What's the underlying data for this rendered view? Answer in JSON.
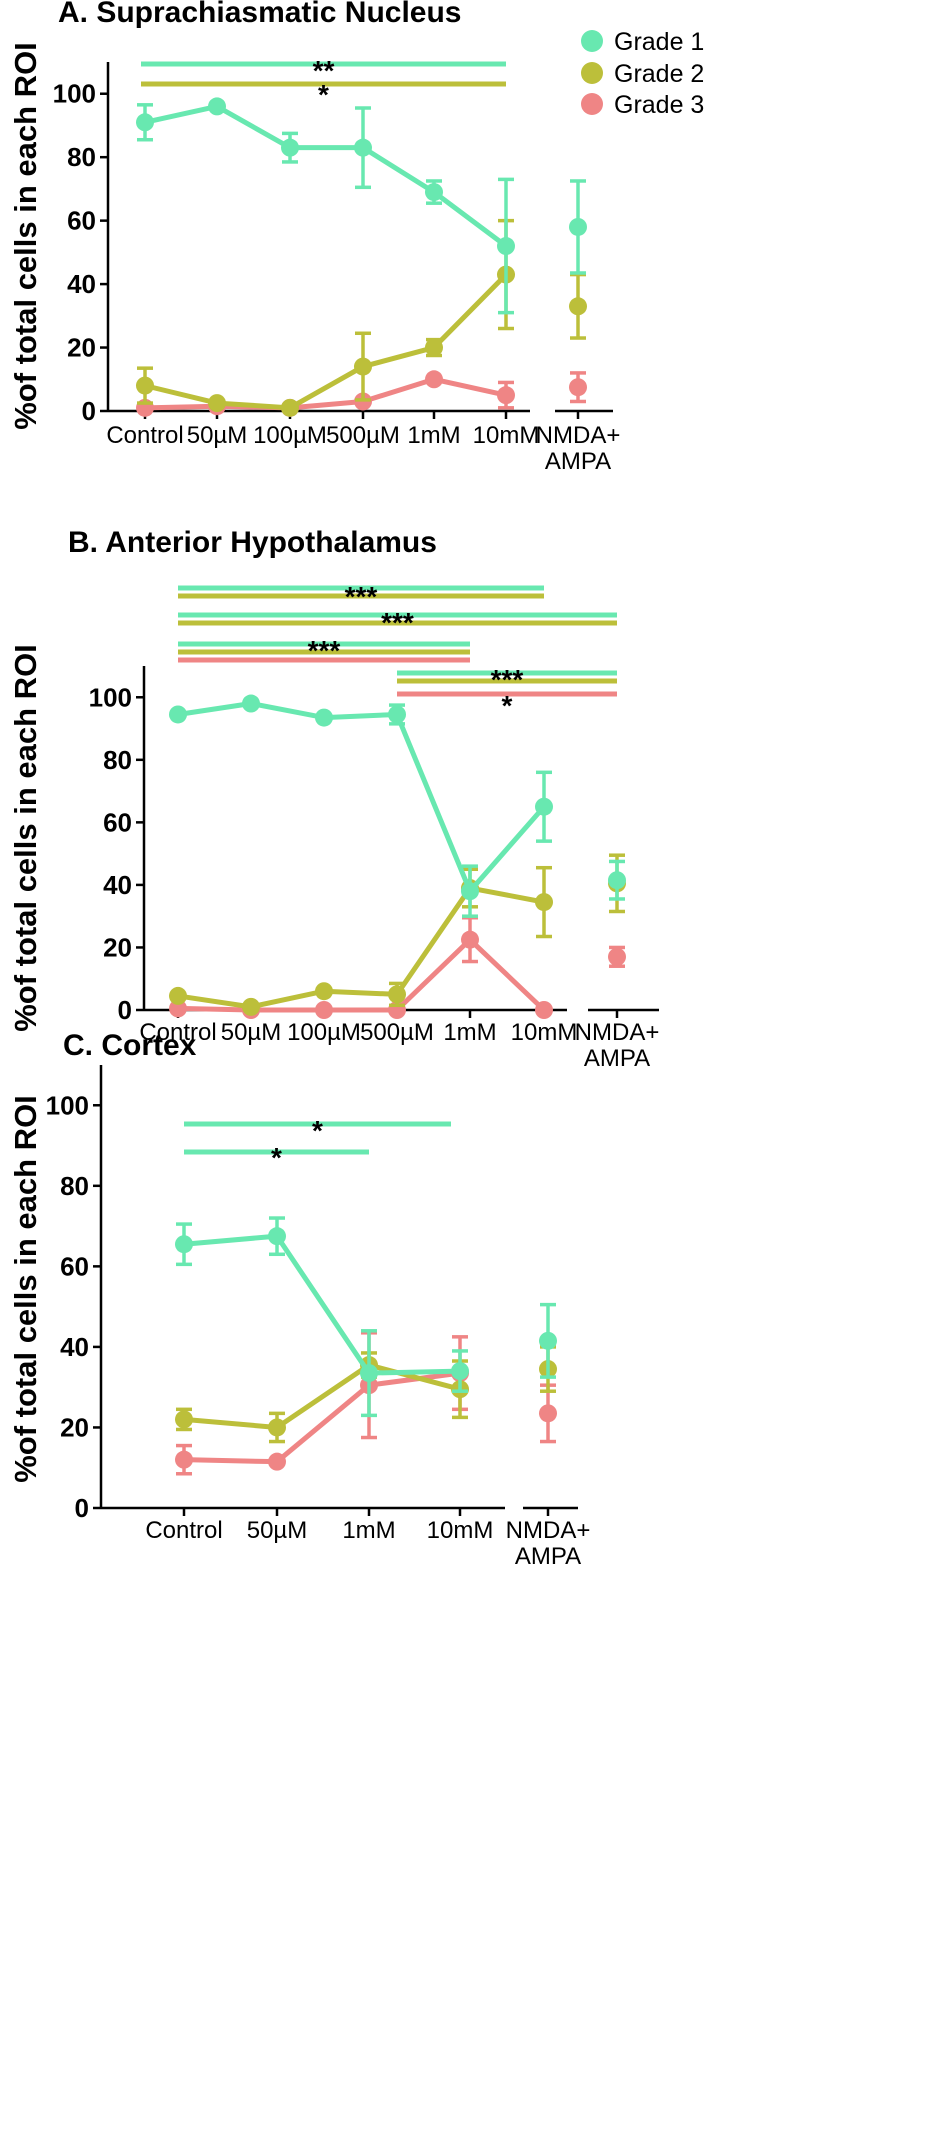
{
  "colors": {
    "Grade 1": "#68e8b0",
    "Grade 2": "#bcbf3a",
    "Grade 3": "#ef8585",
    "axis": "#000000"
  },
  "legend": [
    {
      "label": "Grade 1",
      "color_key": "Grade 1"
    },
    {
      "label": "Grade 2",
      "color_key": "Grade 2"
    },
    {
      "label": "Grade 3",
      "color_key": "Grade 3"
    }
  ],
  "chart_data": [
    {
      "id": "A",
      "type": "line",
      "title": "A.   Suprachiasmatic Nucleus",
      "ylabel": "%of total cells in each ROI",
      "xlabel": "",
      "ylim": [
        0,
        110
      ],
      "yticks": [
        0,
        20,
        40,
        60,
        80,
        100
      ],
      "categories": [
        "Control",
        "50µM",
        "100µM",
        "500µM",
        "1mM",
        "10mM"
      ],
      "extra_category": [
        "NMDA+",
        "AMPA"
      ],
      "series": [
        {
          "name": "Grade 1",
          "values": [
            91,
            96,
            83,
            83,
            69,
            52
          ],
          "errors": [
            5.5,
            0,
            4.5,
            12.5,
            3.5,
            21
          ],
          "extra": {
            "value": 58,
            "error": 14.5
          }
        },
        {
          "name": "Grade 2",
          "values": [
            8,
            2.5,
            1,
            14,
            20,
            43
          ],
          "errors": [
            5.5,
            0,
            0,
            10.5,
            2.5,
            17
          ],
          "extra": {
            "value": 33,
            "error": 10
          }
        },
        {
          "name": "Grade 3",
          "values": [
            1,
            1.5,
            1,
            3,
            10,
            5
          ],
          "errors": [
            0,
            0,
            0,
            0,
            0,
            4
          ],
          "extra": {
            "value": 7.5,
            "error": 4.5
          }
        }
      ],
      "significance": [
        {
          "label": "**",
          "from": "Control",
          "to": "10mM",
          "grades": [
            "Grade 1"
          ]
        },
        {
          "label": "*",
          "from": "Control",
          "to": "10mM",
          "grades": [
            "Grade 2"
          ]
        }
      ]
    },
    {
      "id": "B",
      "type": "line",
      "title": "B.   Anterior Hypothalamus",
      "ylabel": "%of total cells in each ROI",
      "xlabel": "",
      "ylim": [
        0,
        110
      ],
      "yticks": [
        0,
        20,
        40,
        60,
        80,
        100
      ],
      "categories": [
        "Control",
        "50µM",
        "100µM",
        "500µM",
        "1mM",
        "10mM"
      ],
      "extra_category": [
        "NMDA+",
        "AMPA"
      ],
      "series": [
        {
          "name": "Grade 1",
          "values": [
            94.5,
            98,
            93.5,
            94.5,
            38,
            65
          ],
          "errors": [
            0,
            0,
            0,
            3,
            8,
            11
          ],
          "extra": {
            "value": 41.5,
            "error": 6
          }
        },
        {
          "name": "Grade 2",
          "values": [
            4.5,
            1,
            6,
            5,
            39,
            34.5
          ],
          "errors": [
            0,
            0,
            0,
            3.5,
            6,
            11
          ],
          "extra": {
            "value": 40.5,
            "error": 9
          }
        },
        {
          "name": "Grade 3",
          "values": [
            0.5,
            0,
            0,
            0,
            22.5,
            0
          ],
          "errors": [
            0,
            0,
            0,
            0,
            7,
            0
          ],
          "extra": {
            "value": 17,
            "error": 3
          }
        }
      ],
      "significance": [
        {
          "label": "***",
          "from": "Control",
          "to": "10mM",
          "grades": [
            "Grade 1",
            "Grade 2"
          ]
        },
        {
          "label": "***",
          "from": "Control",
          "to": "NMDA+ AMPA",
          "grades": [
            "Grade 1",
            "Grade 2"
          ]
        },
        {
          "label": "***",
          "from": "Control",
          "to": "1mM",
          "grades": [
            "Grade 1",
            "Grade 2",
            "Grade 3"
          ]
        },
        {
          "label": "***",
          "from": "500µM",
          "to": "NMDA+ AMPA",
          "grades": [
            "Grade 1",
            "Grade 2"
          ]
        },
        {
          "label": "*",
          "from": "500µM",
          "to": "NMDA+ AMPA",
          "grades": [
            "Grade 3"
          ]
        }
      ]
    },
    {
      "id": "C",
      "type": "line",
      "title": "C.  Cortex",
      "ylabel": "%of total cells in each ROI",
      "xlabel": "",
      "ylim": [
        0,
        110
      ],
      "yticks": [
        0,
        20,
        40,
        60,
        80,
        100
      ],
      "categories": [
        "Control",
        "50µM",
        "1mM",
        "10mM"
      ],
      "extra_category": [
        "NMDA+",
        "AMPA"
      ],
      "series": [
        {
          "name": "Grade 1",
          "values": [
            65.5,
            67.5,
            33.5,
            34
          ],
          "errors": [
            5,
            4.5,
            10.5,
            5
          ],
          "extra": {
            "value": 41.5,
            "error": 9
          }
        },
        {
          "name": "Grade 2",
          "values": [
            22,
            20,
            35.5,
            29.5
          ],
          "errors": [
            2.5,
            3.5,
            3,
            7
          ],
          "extra": {
            "value": 34.5,
            "error": 5.5
          }
        },
        {
          "name": "Grade 3",
          "values": [
            12,
            11.5,
            30.5,
            33.5
          ],
          "errors": [
            3.5,
            0,
            13,
            9
          ],
          "extra": {
            "value": 23.5,
            "error": 7
          }
        }
      ],
      "significance": [
        {
          "label": "*",
          "from": "Control",
          "to": "10mM",
          "grades": [
            "Grade 1"
          ]
        },
        {
          "label": "*",
          "from": "Control",
          "to": "1mM",
          "grades": [
            "Grade 1"
          ]
        }
      ]
    }
  ]
}
